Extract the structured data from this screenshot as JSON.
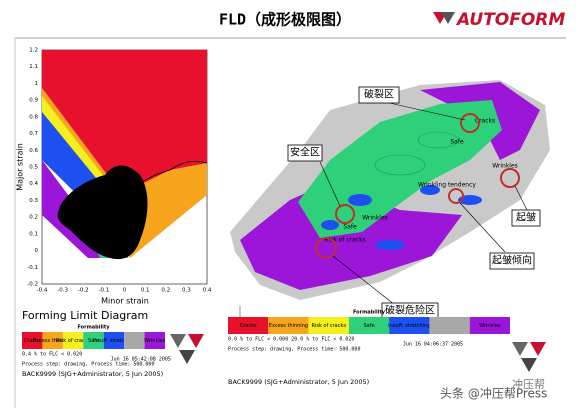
{
  "header": {
    "title": "FLD（成形极限图）",
    "logo": "AUTOFORM"
  },
  "fld": {
    "y_label": "Major strain",
    "x_label": "Minor strain",
    "y_ticks": [
      "-0.2",
      "-0.1",
      "0",
      "0.1",
      "0.2",
      "0.3",
      "0.4",
      "0.5",
      "0.6",
      "0.7",
      "0.8",
      "0.9",
      "1",
      "1.1",
      "1.2"
    ],
    "x_ticks": [
      "-0.4",
      "-0.3",
      "-0.2",
      "-0.1",
      "0",
      "0.1",
      "0.2",
      "0.3",
      "0.4"
    ],
    "caption": "Forming Limit Diagram"
  },
  "left_legend": {
    "title": "Formability",
    "items": [
      {
        "label": "Cracks",
        "color": "#e8112d"
      },
      {
        "label": "Excess thinning",
        "color": "#f7a51c"
      },
      {
        "label": "Risk of cracks",
        "color": "#f4f01e"
      },
      {
        "label": "Safe",
        "color": "#2fd07a"
      },
      {
        "label": "Insuff. stretching",
        "color": "#1e4ff0"
      },
      {
        "color": "#a8a8a8"
      },
      {
        "label": "Wrinkles",
        "color": "#9b16d8"
      }
    ],
    "note": "0.4 % to FLC    < 0.020",
    "process": "Process step: drawing, Process time: 500.000",
    "date": "Jun 16 05:42:08 2005",
    "file": "BACK9999 (SJG+Administrator, 5 Jun 2005)"
  },
  "right_legend": {
    "title": "Formability",
    "items": [
      {
        "label": "Cracks",
        "color": "#e8112d"
      },
      {
        "label": "Excess thinning",
        "color": "#f7a51c"
      },
      {
        "label": "Risk of cracks",
        "color": "#f4f01e"
      },
      {
        "label": "Safe",
        "color": "#2fd07a"
      },
      {
        "label": "Insuff. stretching",
        "color": "#1e4ff0"
      },
      {
        "color": "#a8a8a8"
      },
      {
        "label": "Wrinkles",
        "color": "#9b16d8"
      }
    ],
    "note": "0.0 % to FLC   < 0.000   20.0 % to FLC   < 0.020",
    "process": "Process step: drawing, Process time: 500.000",
    "date": "Jun 16 04:06:37 2005",
    "file": "BACK9999 (SJG+Administrator, 5 Jun 2005)"
  },
  "simulation": {
    "labels": [
      "Cracks",
      "Safe",
      "Wrinkles",
      "Wrinkling tendency",
      "Wrinkles",
      "Safe",
      "Risk of cracks"
    ]
  },
  "callouts": [
    "破裂区",
    "安全区",
    "起皱",
    "起皱倾向",
    "破裂危险区"
  ],
  "watermark": [
    "冲压帮",
    "头条 @冲压帮Press"
  ]
}
